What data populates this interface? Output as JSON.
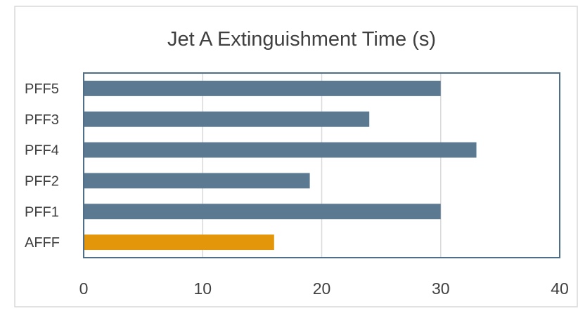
{
  "chart_data": {
    "type": "bar",
    "orientation": "horizontal",
    "title": "Jet A Extinguishment Time (s)",
    "xlabel": "",
    "ylabel": "",
    "categories": [
      "PFF5",
      "PFF3",
      "PFF4",
      "PFF2",
      "PFF1",
      "AFFF"
    ],
    "values": [
      30,
      24,
      33,
      19,
      30,
      16
    ],
    "bar_colors": [
      "#5b7a92",
      "#5b7a92",
      "#5b7a92",
      "#5b7a92",
      "#5b7a92",
      "#e3960a"
    ],
    "xlim": [
      0,
      40
    ],
    "xticks": [
      "0",
      "10",
      "20",
      "30",
      "40"
    ],
    "grid": true,
    "legend": "none"
  }
}
